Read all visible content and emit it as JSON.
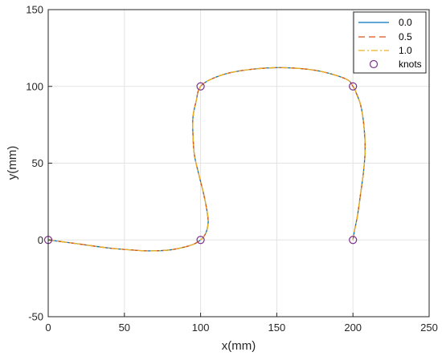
{
  "chart_data": {
    "type": "line",
    "title": "",
    "xlabel": "x(mm)",
    "ylabel": "y(mm)",
    "xlim": [
      0,
      250
    ],
    "ylim": [
      -50,
      150
    ],
    "xticks": [
      0,
      50,
      100,
      150,
      200,
      250
    ],
    "yticks": [
      -50,
      0,
      50,
      100,
      150
    ],
    "xtick_labels": [
      "0",
      "50",
      "100",
      "150",
      "200",
      "250"
    ],
    "ytick_labels": [
      "-50",
      "0",
      "50",
      "100",
      "150"
    ],
    "grid": true,
    "legend_position": "top-right",
    "series": [
      {
        "name": "0.0",
        "style": "solid",
        "color": "#0072BD",
        "x": [
          0,
          20,
          40,
          60,
          70,
          80,
          90,
          96,
          100,
          102,
          104,
          105,
          104,
          102,
          99,
          96,
          95,
          95,
          97,
          100,
          110,
          125,
          150,
          175,
          195,
          200,
          202,
          205,
          207,
          208,
          207,
          205,
          203,
          201,
          200
        ],
        "y": [
          0,
          -2.6,
          -5.3,
          -6.9,
          -7.1,
          -6.5,
          -4.5,
          -2.5,
          0,
          2,
          6,
          12,
          20,
          30,
          42,
          55,
          68,
          80,
          90,
          100,
          106,
          110,
          112.2,
          110.5,
          105,
          100,
          96,
          88,
          76,
          60,
          45,
          30,
          16,
          6,
          0
        ]
      },
      {
        "name": "0.5",
        "style": "dashed",
        "color": "#D95319",
        "x": [
          0,
          20,
          40,
          60,
          70,
          80,
          90,
          96,
          100,
          102,
          104,
          105,
          104,
          102,
          99,
          96,
          95,
          95,
          97,
          100,
          110,
          125,
          150,
          175,
          195,
          200,
          202,
          205,
          207,
          208,
          207,
          205,
          203,
          201,
          200
        ],
        "y": [
          0,
          -2.6,
          -5.3,
          -6.9,
          -7.1,
          -6.5,
          -4.5,
          -2.5,
          0,
          2,
          6,
          12,
          20,
          30,
          42,
          55,
          68,
          80,
          90,
          100,
          106,
          110,
          112.2,
          110.5,
          105,
          100,
          96,
          88,
          76,
          60,
          45,
          30,
          16,
          6,
          0
        ]
      },
      {
        "name": "1.0",
        "style": "dashdot",
        "color": "#EDB120",
        "x": [
          0,
          20,
          40,
          60,
          70,
          80,
          90,
          96,
          100,
          102,
          104,
          105,
          104,
          102,
          99,
          96,
          95,
          95,
          97,
          100,
          110,
          125,
          150,
          175,
          195,
          200,
          202,
          205,
          207,
          208,
          207,
          205,
          203,
          201,
          200
        ],
        "y": [
          0,
          -2.6,
          -5.3,
          -6.9,
          -7.1,
          -6.5,
          -4.5,
          -2.5,
          0,
          2,
          6,
          12,
          20,
          30,
          42,
          55,
          68,
          80,
          90,
          100,
          106,
          110,
          112.2,
          110.5,
          105,
          100,
          96,
          88,
          76,
          60,
          45,
          30,
          16,
          6,
          0
        ]
      }
    ],
    "knots": {
      "name": "knots",
      "marker": "circle",
      "color": "#7E2F8E",
      "x": [
        0,
        100,
        100,
        200,
        200
      ],
      "y": [
        0,
        0,
        100,
        100,
        0
      ]
    }
  }
}
